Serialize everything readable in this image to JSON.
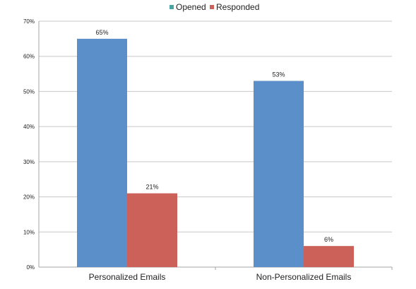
{
  "chart_data": {
    "type": "bar",
    "title": "",
    "xlabel": "",
    "ylabel": "",
    "categories": [
      "Personalized Emails",
      "Non-Personalized Emails"
    ],
    "series": [
      {
        "name": "Opened",
        "values": [
          65,
          53
        ],
        "value_labels": [
          "65%",
          "53%"
        ]
      },
      {
        "name": "Responded",
        "values": [
          21,
          6
        ],
        "value_labels": [
          "21%",
          "6%"
        ]
      }
    ],
    "ylim": [
      0,
      70
    ],
    "yticks": [
      0,
      10,
      20,
      30,
      40,
      50,
      60,
      70
    ],
    "ytick_labels": [
      "0%",
      "10%",
      "20%",
      "30%",
      "40%",
      "50%",
      "60%",
      "70%"
    ],
    "grid": true,
    "legend_position": "top-center",
    "colors": {
      "bars": [
        "#5b8fc9",
        "#cc615a"
      ],
      "legend_swatches": [
        "#4aa3a3",
        "#cc615a"
      ],
      "gridline": "#c8c8c8",
      "axis": "#a6a6a6"
    }
  }
}
